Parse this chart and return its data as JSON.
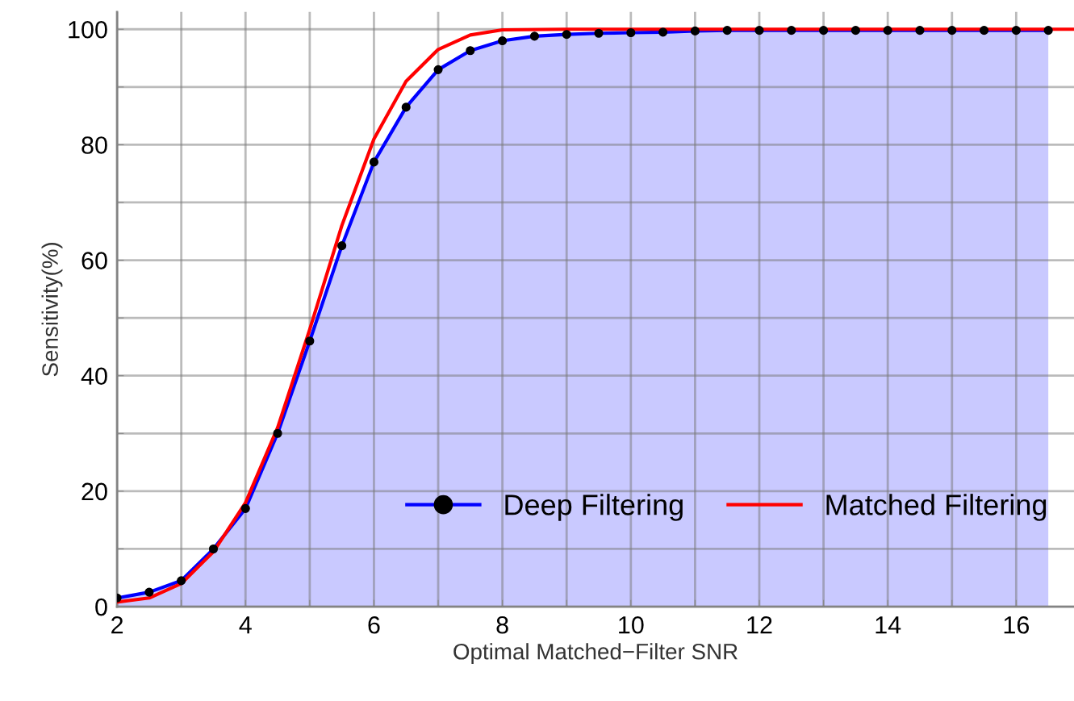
{
  "chart_data": {
    "type": "area",
    "xlabel": "Optimal Matched−Filter SNR",
    "ylabel": "Sensitivity(%)",
    "xlim": [
      2,
      16.9
    ],
    "ylim": [
      0,
      103
    ],
    "xticks": [
      2,
      {
        "value": 3,
        "label": null
      },
      4,
      {
        "value": 5,
        "label": null
      },
      6,
      {
        "value": 7,
        "label": null
      },
      8,
      {
        "value": 9,
        "label": null
      },
      10,
      {
        "value": 11,
        "label": null
      },
      12,
      {
        "value": 13,
        "label": null
      },
      14,
      {
        "value": 15,
        "label": null
      },
      16
    ],
    "yticks": [
      0,
      {
        "value": 10,
        "label": null
      },
      20,
      {
        "value": 30,
        "label": null
      },
      40,
      {
        "value": 50,
        "label": null
      },
      60,
      {
        "value": 70,
        "label": null
      },
      80,
      {
        "value": 90,
        "label": null
      },
      100
    ],
    "grid": true,
    "legend": "bottom right",
    "series": [
      {
        "name": "Deep Filtering",
        "color": "#0000ff",
        "marker": "circle",
        "x": [
          2,
          2.5,
          3,
          3.5,
          4,
          4.5,
          5,
          5.5,
          6,
          6.5,
          7,
          7.5,
          8,
          8.5,
          9,
          9.5,
          10,
          10.5,
          11,
          11.5,
          12,
          12.5,
          13,
          13.5,
          14,
          14.5,
          15,
          15.5,
          16,
          16.5
        ],
        "values": [
          1.5,
          2.5,
          4.5,
          10,
          17,
          30,
          46,
          62.5,
          77,
          86.5,
          93,
          96.3,
          98,
          98.8,
          99.1,
          99.3,
          99.4,
          99.5,
          99.7,
          99.8,
          99.8,
          99.8,
          99.8,
          99.8,
          99.8,
          99.8,
          99.8,
          99.8,
          99.8,
          99.8
        ]
      },
      {
        "name": "Matched Filtering",
        "type": "line",
        "color": "#ff0000",
        "marker": "none",
        "x": [
          2,
          2.5,
          3,
          3.5,
          4,
          4.5,
          5,
          5.5,
          6,
          6.5,
          7,
          7.5,
          8,
          9,
          10,
          12,
          14,
          16,
          16.9
        ],
        "values": [
          0.8,
          1.5,
          4,
          9.5,
          18,
          31,
          48,
          66,
          81,
          91,
          96.5,
          99,
          99.9,
          100,
          100,
          100,
          100,
          100,
          100
        ]
      }
    ]
  }
}
